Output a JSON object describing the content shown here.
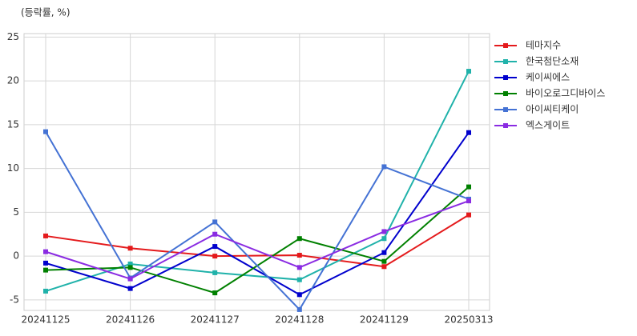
{
  "chart_data": {
    "type": "line",
    "y_label": "(등락률, %)",
    "categories": [
      "20241125",
      "20241126",
      "20241127",
      "20241128",
      "20241129",
      "20250313"
    ],
    "series": [
      {
        "name": "테마지수",
        "color": "#e41a1c",
        "values": [
          2.3,
          0.9,
          0.0,
          0.1,
          -1.2,
          4.7
        ]
      },
      {
        "name": "한국첨단소재",
        "color": "#20b2aa",
        "values": [
          -4.0,
          -0.9,
          -1.9,
          -2.7,
          2.0,
          21.1
        ]
      },
      {
        "name": "케이씨에스",
        "color": "#0000cd",
        "values": [
          -0.8,
          -3.7,
          1.1,
          -4.4,
          0.4,
          14.1
        ]
      },
      {
        "name": "바이오로그디바이스",
        "color": "#008000",
        "values": [
          -1.6,
          -1.3,
          -4.2,
          2.0,
          -0.6,
          7.9
        ]
      },
      {
        "name": "아이씨티케이",
        "color": "#4472d4",
        "values": [
          14.2,
          -2.5,
          3.9,
          -6.1,
          10.2,
          6.5
        ]
      },
      {
        "name": "엑스게이트",
        "color": "#8a2be2",
        "values": [
          0.5,
          -2.6,
          2.5,
          -1.3,
          2.8,
          6.3
        ]
      }
    ],
    "ylim": [
      -6.2,
      25.4
    ],
    "yticks": [
      -5,
      0,
      5,
      10,
      15,
      20,
      25
    ],
    "grid": true,
    "legend": "right"
  }
}
